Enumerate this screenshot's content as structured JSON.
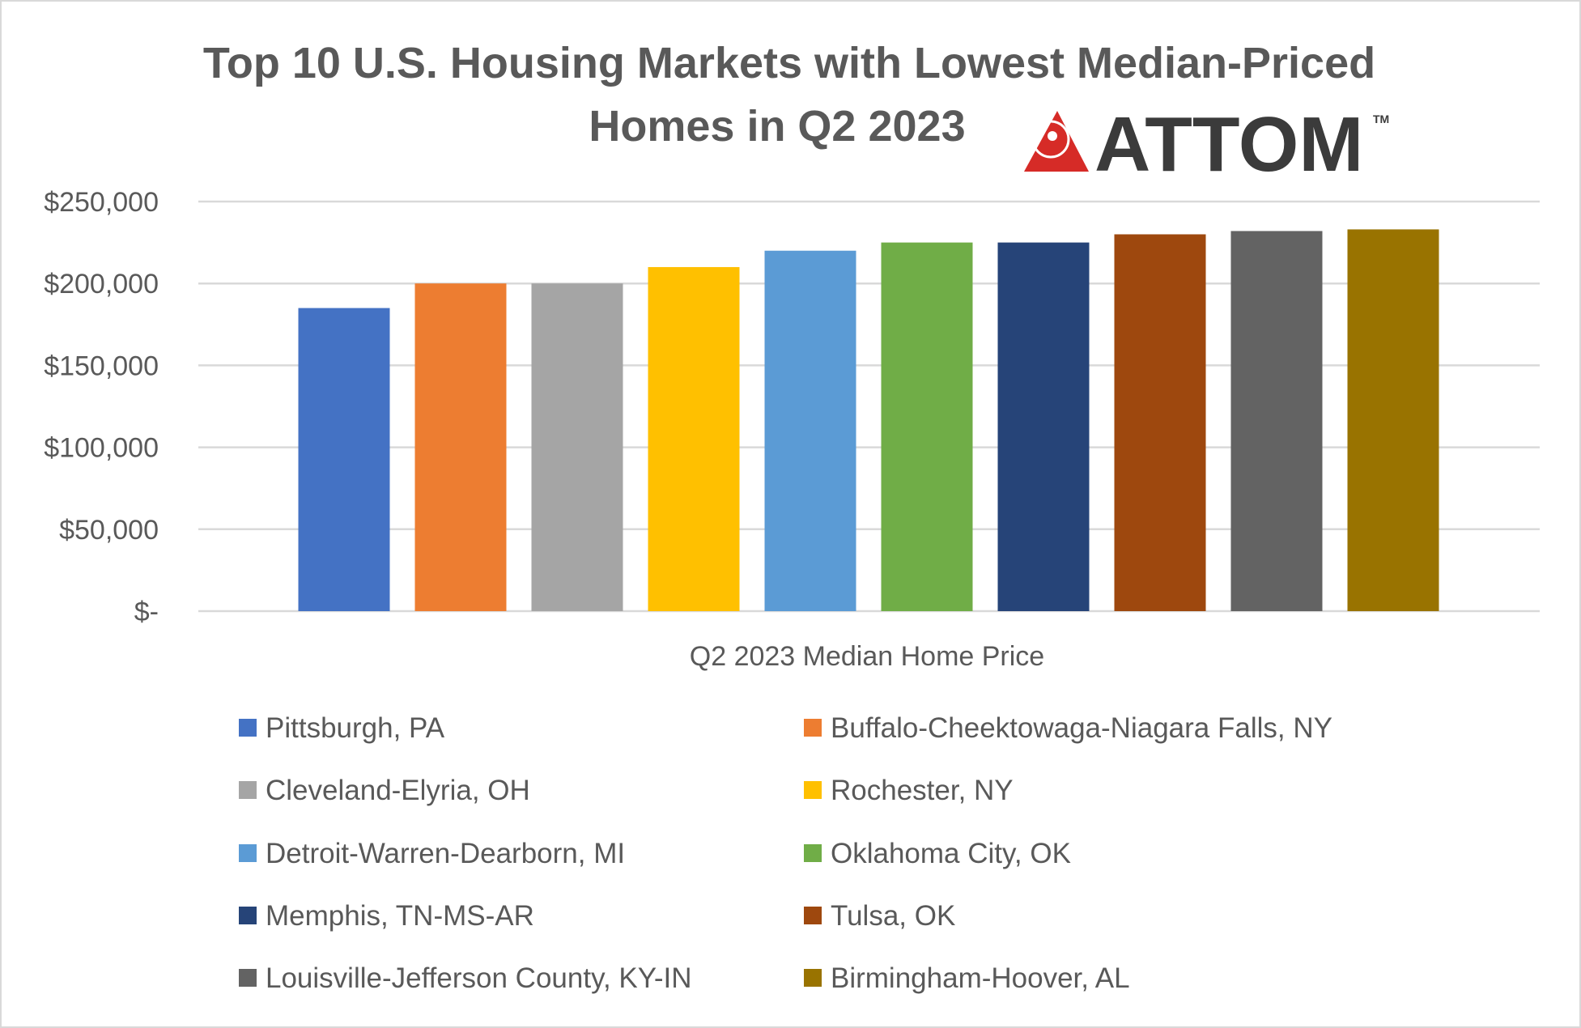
{
  "chart_data": {
    "type": "bar",
    "title": [
      "Top 10 U.S. Housing Markets with Lowest Median-Priced",
      "Homes in Q2 2023"
    ],
    "logo_text": "ATTOM",
    "logo_mark": "TM",
    "xlabel": "Q2 2023 Median Home Price",
    "ylabel": "",
    "ylim": [
      0,
      250000
    ],
    "yticks": [
      {
        "value": 0,
        "label": "$-"
      },
      {
        "value": 50000,
        "label": "$50,000"
      },
      {
        "value": 100000,
        "label": "$100,000"
      },
      {
        "value": 150000,
        "label": "$150,000"
      },
      {
        "value": 200000,
        "label": "$200,000"
      },
      {
        "value": 250000,
        "label": "$250,000"
      }
    ],
    "grid": true,
    "legend_position": "bottom",
    "series": [
      {
        "name": "Pittsburgh, PA",
        "value": 185000,
        "color": "#4472C4"
      },
      {
        "name": "Buffalo-Cheektowaga-Niagara Falls, NY",
        "value": 200000,
        "color": "#ED7D31"
      },
      {
        "name": "Cleveland-Elyria, OH",
        "value": 200000,
        "color": "#A5A5A5"
      },
      {
        "name": "Rochester, NY",
        "value": 210000,
        "color": "#FFC000"
      },
      {
        "name": "Detroit-Warren-Dearborn, MI",
        "value": 220000,
        "color": "#5B9BD5"
      },
      {
        "name": "Oklahoma City, OK",
        "value": 225000,
        "color": "#70AD47"
      },
      {
        "name": "Memphis, TN-MS-AR",
        "value": 225000,
        "color": "#264478"
      },
      {
        "name": "Tulsa, OK",
        "value": 230000,
        "color": "#9E480E"
      },
      {
        "name": "Louisville-Jefferson County, KY-IN",
        "value": 232000,
        "color": "#636363"
      },
      {
        "name": "Birmingham-Hoover, AL",
        "value": 233000,
        "color": "#997300"
      }
    ]
  }
}
